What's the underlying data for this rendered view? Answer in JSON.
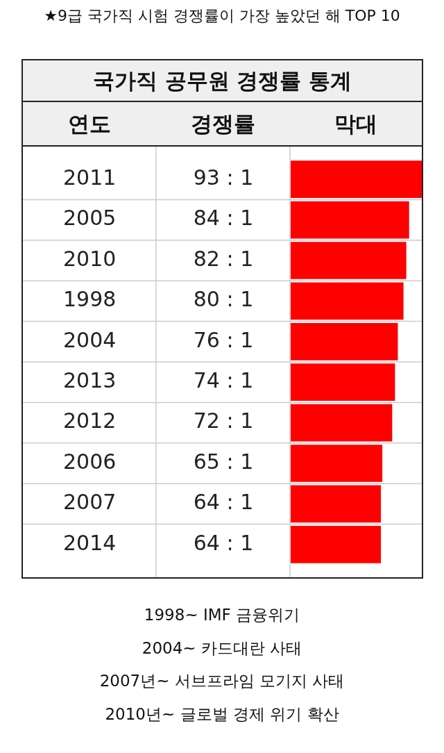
{
  "chart_data": {
    "type": "bar",
    "orientation": "horizontal",
    "title": "★9급 국가직 시험 경쟁률이 가장 높았던 해 TOP 10",
    "subtitle": "국가직 공무원 경쟁률 통계",
    "ylabel": "연도",
    "xlabel": "막대",
    "categories": [
      "2011",
      "2005",
      "2010",
      "1998",
      "2004",
      "2013",
      "2012",
      "2006",
      "2007",
      "2014"
    ],
    "values": [
      93,
      84,
      82,
      80,
      76,
      74,
      72,
      65,
      64,
      64
    ],
    "value_labels": [
      "93 : 1",
      "84 : 1",
      "82 : 1",
      "80 : 1",
      "76 : 1",
      "74 : 1",
      "72 : 1",
      "65 : 1",
      "64 : 1",
      "64 : 1"
    ],
    "color": "#ff0000",
    "xlim": [
      0,
      93
    ],
    "tick_labels": "y",
    "grid": "y",
    "legend": false,
    "annotations": [
      "경쟁률",
      "1998~ IMF 금융위기",
      "2004~ 카드대란 사태",
      "2007년~ 서브프라임 모기지 사태",
      "2010년~ 글로벌 경제 위기 확산"
    ]
  }
}
